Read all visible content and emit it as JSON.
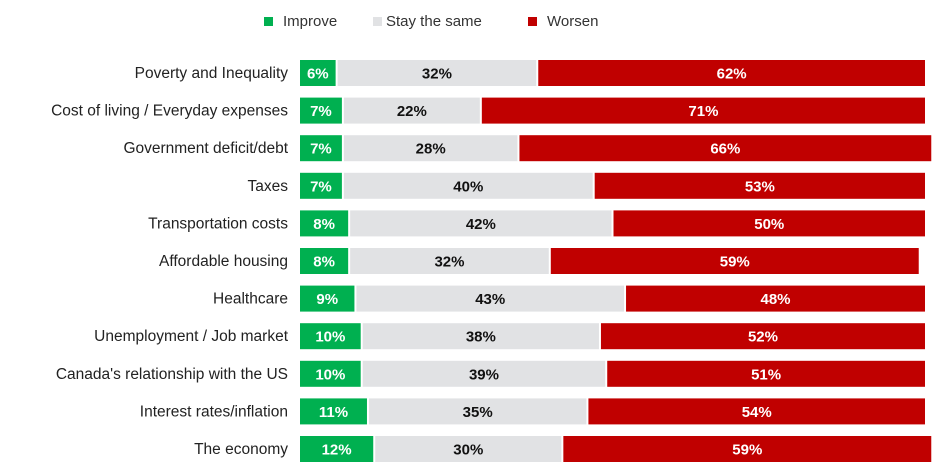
{
  "chart_data": {
    "type": "bar",
    "orientation": "horizontal",
    "stacked": true,
    "categories": [
      "Poverty and Inequality",
      "Cost of living / Everyday expenses",
      "Government deficit/debt",
      "Taxes",
      "Transportation costs",
      "Affordable housing",
      "Healthcare",
      "Unemployment / Job market",
      "Canada's relationship with the US",
      "Interest rates/inflation",
      "The economy"
    ],
    "series": [
      {
        "name": "Improve",
        "color": "#00b050",
        "label_color": "#ffffff",
        "values": [
          6,
          7,
          7,
          7,
          8,
          8,
          9,
          10,
          10,
          11,
          12
        ]
      },
      {
        "name": "Stay the same",
        "color": "#e1e2e4",
        "label_color": "#111111",
        "values": [
          32,
          22,
          28,
          40,
          42,
          32,
          43,
          38,
          39,
          35,
          30
        ]
      },
      {
        "name": "Worsen",
        "color": "#c00000",
        "label_color": "#ffffff",
        "values": [
          62,
          71,
          66,
          53,
          50,
          59,
          48,
          52,
          51,
          54,
          59
        ]
      }
    ],
    "value_suffix": "%",
    "legend_position": "top",
    "grid": false
  }
}
